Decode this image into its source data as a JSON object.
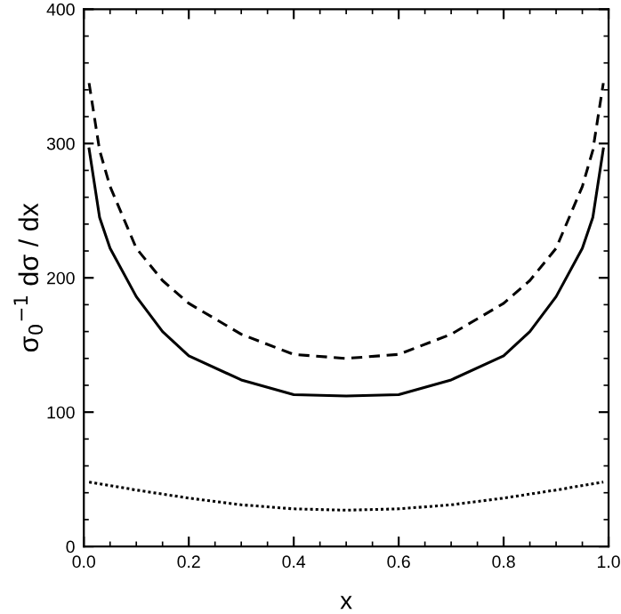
{
  "chart_data": {
    "type": "line",
    "xlabel": "x",
    "ylabel": "σ$_{0}$$^{−1}$ dσ / dx",
    "xlim": [
      0,
      1
    ],
    "ylim": [
      0,
      400
    ],
    "xticks": [
      {
        "value": 0,
        "label": "0.0"
      },
      0.2,
      0.4,
      0.6,
      0.8,
      {
        "value": 1,
        "label": "1.0"
      }
    ],
    "yticks": [
      0,
      100,
      200,
      300,
      400
    ],
    "grid": false,
    "legend": false,
    "marker": "none",
    "series": [
      {
        "color": "#000000",
        "line_style": "dashed",
        "x": [
          0.01,
          0.03,
          0.05,
          0.1,
          0.15,
          0.2,
          0.3,
          0.4,
          0.5,
          0.6,
          0.7,
          0.8,
          0.85,
          0.9,
          0.95,
          0.97,
          0.99
        ],
        "values": [
          345,
          295,
          268,
          222,
          198,
          181,
          158,
          143,
          140,
          143,
          158,
          181,
          198,
          222,
          268,
          295,
          345
        ]
      },
      {
        "color": "#000000",
        "line_style": "solid",
        "x": [
          0.01,
          0.03,
          0.05,
          0.1,
          0.15,
          0.2,
          0.3,
          0.4,
          0.5,
          0.6,
          0.7,
          0.8,
          0.85,
          0.9,
          0.95,
          0.97,
          0.99
        ],
        "values": [
          296,
          245,
          222,
          186,
          160,
          142,
          124,
          113,
          112,
          113,
          124,
          142,
          160,
          186,
          222,
          245,
          296
        ]
      },
      {
        "color": "#000000",
        "line_style": "dotted",
        "x": [
          0.01,
          0.1,
          0.2,
          0.3,
          0.4,
          0.5,
          0.6,
          0.7,
          0.8,
          0.9,
          0.99
        ],
        "values": [
          48,
          42,
          36,
          31,
          28,
          27,
          28,
          31,
          36,
          42,
          48
        ]
      }
    ]
  }
}
